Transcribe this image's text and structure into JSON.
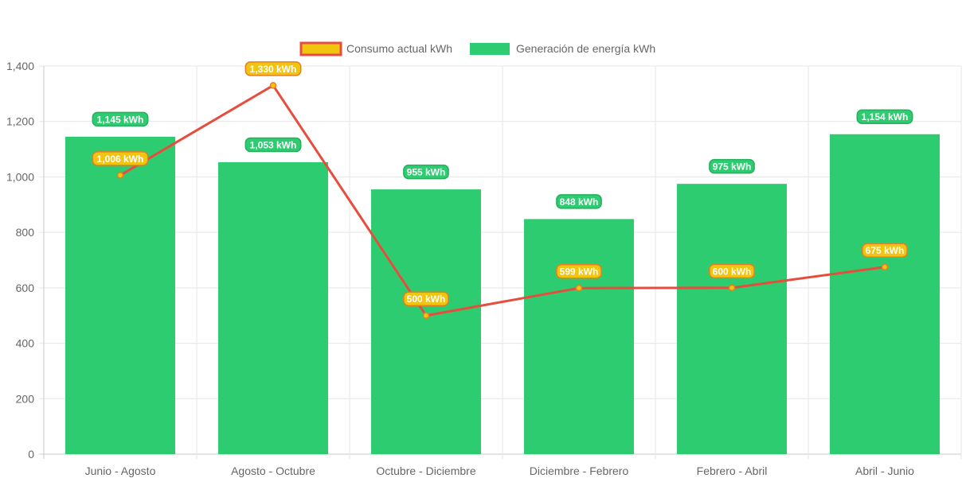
{
  "chart_data": {
    "type": "bar",
    "categories": [
      "Junio - Agosto",
      "Agosto - Octubre",
      "Octubre - Diciembre",
      "Diciembre - Febrero",
      "Febrero - Abril",
      "Abril - Junio"
    ],
    "series": [
      {
        "name": "Consumo actual kWh",
        "type": "line",
        "values": [
          1006,
          1330,
          500,
          599,
          600,
          675
        ],
        "labels": [
          "1,006 kWh",
          "1,330 kWh",
          "500 kWh",
          "599 kWh",
          "600 kWh",
          "675 kWh"
        ],
        "line_color": "#e74c3c",
        "point_color": "#f1c40f",
        "label_bg": "#f1c40f",
        "label_border": "#e67e22"
      },
      {
        "name": "Generación de energía kWh",
        "type": "bar",
        "values": [
          1145,
          1053,
          955,
          848,
          975,
          1154
        ],
        "labels": [
          "1,145 kWh",
          "1,053 kWh",
          "955 kWh",
          "848 kWh",
          "975 kWh",
          "1,154 kWh"
        ],
        "color": "#2ecc71",
        "label_bg": "#2ecc71",
        "label_border": "#27ae60"
      }
    ],
    "ylim": [
      0,
      1400
    ],
    "yticks": [
      0,
      200,
      400,
      600,
      800,
      1000,
      1200,
      1400
    ],
    "ytick_labels": [
      "0",
      "200",
      "400",
      "600",
      "800",
      "1,000",
      "1,200",
      "1,400"
    ],
    "grid": true,
    "legend_position": "top",
    "legend_swatch_border": "#e74c3c"
  }
}
